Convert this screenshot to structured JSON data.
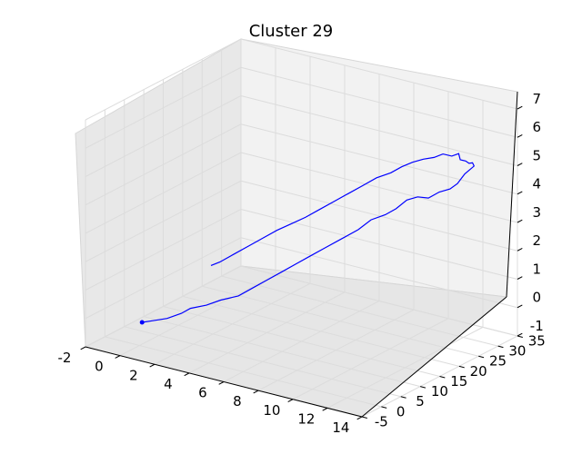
{
  "chart_data": {
    "type": "line",
    "projection": "3d",
    "title": "Cluster 29",
    "xlabel": "",
    "ylabel": "",
    "zlabel": "",
    "xlim": [
      -2,
      14
    ],
    "ylim": [
      -5,
      35
    ],
    "zlim": [
      -1,
      7
    ],
    "x_ticks": [
      "-2",
      "0",
      "2",
      "4",
      "6",
      "8",
      "10",
      "12",
      "14"
    ],
    "y_ticks": [
      "-5",
      "0",
      "5",
      "10",
      "15",
      "20",
      "25",
      "30",
      "35"
    ],
    "z_ticks": [
      "-1",
      "0",
      "1",
      "2",
      "3",
      "4",
      "5",
      "6",
      "7"
    ],
    "grid": true,
    "legend": false,
    "series": [
      {
        "color": "#0000ff",
        "marker_at_start": true,
        "x": [
          0.6,
          1.0,
          1.6,
          2.2,
          2.5,
          3.2,
          3.8,
          4.6,
          5.2,
          5.8,
          6.4,
          7.0,
          7.6,
          8.2,
          8.8,
          9.4,
          9.8,
          10.4,
          10.8,
          11.2,
          11.6,
          12.0,
          12.4,
          12.8,
          13.0,
          13.2,
          13.4,
          13.2,
          13.0,
          12.8,
          12.6,
          12.4,
          12.0,
          11.6,
          11.2,
          10.8,
          10.4,
          10.0,
          9.6,
          9.0,
          8.4,
          7.8,
          7.2,
          6.6,
          6.0,
          5.4,
          4.8,
          4.2,
          3.6,
          3.0,
          2.4,
          2.0
        ],
        "y": [
          -2.0,
          -1.0,
          0.0,
          1.0,
          2.0,
          3.0,
          4.0,
          5.0,
          6.0,
          7.0,
          8.0,
          9.0,
          10.0,
          11.5,
          13.0,
          14.5,
          16.0,
          17.0,
          18.0,
          19.0,
          20.0,
          21.0,
          22.0,
          23.0,
          24.0,
          25.0,
          26.5,
          27.0,
          27.0,
          27.0,
          26.5,
          27.0,
          27.0,
          26.5,
          26.0,
          25.0,
          24.0,
          23.0,
          22.0,
          21.0,
          20.0,
          19.0,
          18.0,
          17.0,
          16.0,
          15.0,
          14.0,
          13.0,
          12.0,
          11.0,
          10.0,
          9.5
        ],
        "z": [
          0.05,
          0.1,
          0.2,
          0.4,
          0.55,
          0.7,
          0.9,
          1.1,
          1.4,
          1.7,
          2.0,
          2.3,
          2.6,
          2.9,
          3.2,
          3.5,
          3.8,
          4.0,
          4.2,
          4.5,
          4.6,
          4.55,
          4.75,
          4.85,
          5.0,
          5.3,
          5.5,
          5.55,
          5.5,
          5.55,
          5.6,
          5.75,
          5.6,
          5.65,
          5.5,
          5.45,
          5.35,
          5.2,
          5.0,
          4.8,
          4.5,
          4.2,
          3.9,
          3.6,
          3.3,
          3.05,
          2.8,
          2.5,
          2.2,
          1.9,
          1.6,
          1.45
        ]
      }
    ]
  }
}
